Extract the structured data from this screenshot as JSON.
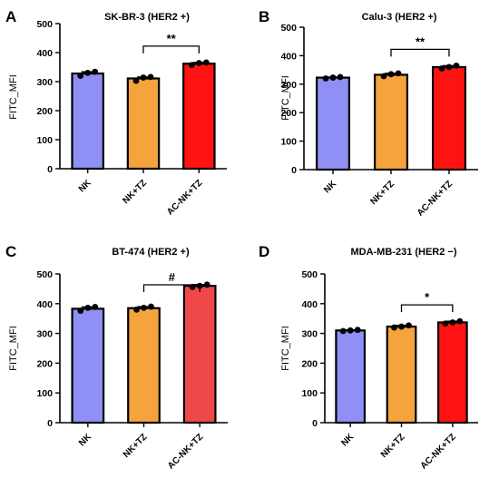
{
  "chart_data": [
    {
      "type": "bar",
      "panel": "A",
      "title": "SK-BR-3 (HER2 +)",
      "ylabel": "FITC_MFI",
      "xlabel": "",
      "ylim": [
        0,
        500
      ],
      "yticks": [
        0,
        100,
        200,
        300,
        400,
        500
      ],
      "categories": [
        "NK",
        "NK+TZ",
        "AC-NK+TZ"
      ],
      "values": [
        328,
        311,
        362
      ],
      "points": [
        [
          320,
          330,
          334
        ],
        [
          303,
          314,
          316
        ],
        [
          357,
          364,
          366
        ]
      ],
      "colors": [
        "#8f8ff5",
        "#f5a33d",
        "#ff1212"
      ],
      "significance": {
        "from": "NK+TZ",
        "to": "AC-NK+TZ",
        "label": "**"
      }
    },
    {
      "type": "bar",
      "panel": "B",
      "title": "Calu-3 (HER2 +)",
      "ylabel": "FITC_MFI",
      "xlabel": "",
      "ylim": [
        0,
        500
      ],
      "yticks": [
        0,
        100,
        200,
        300,
        400,
        500
      ],
      "categories": [
        "NK",
        "NK+TZ",
        "AC-NK+TZ"
      ],
      "values": [
        323,
        333,
        360
      ],
      "points": [
        [
          320,
          323,
          325
        ],
        [
          328,
          335,
          338
        ],
        [
          355,
          360,
          365
        ]
      ],
      "colors": [
        "#8f8ff5",
        "#f5a33d",
        "#ff1212"
      ],
      "significance": {
        "from": "NK+TZ",
        "to": "AC-NK+TZ",
        "label": "**"
      }
    },
    {
      "type": "bar",
      "panel": "C",
      "title": "BT-474 (HER2 +)",
      "ylabel": "FITC_MFI",
      "xlabel": "",
      "ylim": [
        0,
        500
      ],
      "yticks": [
        0,
        100,
        200,
        300,
        400,
        500
      ],
      "categories": [
        "NK",
        "NK+TZ",
        "AC-NK+TZ"
      ],
      "values": [
        383,
        385,
        460
      ],
      "points": [
        [
          376,
          386,
          389
        ],
        [
          380,
          386,
          390
        ],
        [
          456,
          460,
          464
        ]
      ],
      "colors": [
        "#8f8ff5",
        "#f5a33d",
        "#f04848"
      ],
      "significance": {
        "from": "NK+TZ",
        "to": "AC-NK+TZ",
        "label": "#"
      }
    },
    {
      "type": "bar",
      "panel": "D",
      "title": "MDA-MB-231 (HER2 −)",
      "ylabel": "FITC_MFI",
      "xlabel": "",
      "ylim": [
        0,
        500
      ],
      "yticks": [
        0,
        100,
        200,
        300,
        400,
        500
      ],
      "categories": [
        "NK",
        "NK+TZ",
        "AC-NK+TZ"
      ],
      "values": [
        310,
        323,
        337
      ],
      "points": [
        [
          308,
          310,
          312
        ],
        [
          320,
          323,
          327
        ],
        [
          333,
          337,
          341
        ]
      ],
      "colors": [
        "#8f8ff5",
        "#f5a33d",
        "#ff1212"
      ],
      "significance": {
        "from": "NK+TZ",
        "to": "AC-NK+TZ",
        "label": "*"
      }
    }
  ]
}
